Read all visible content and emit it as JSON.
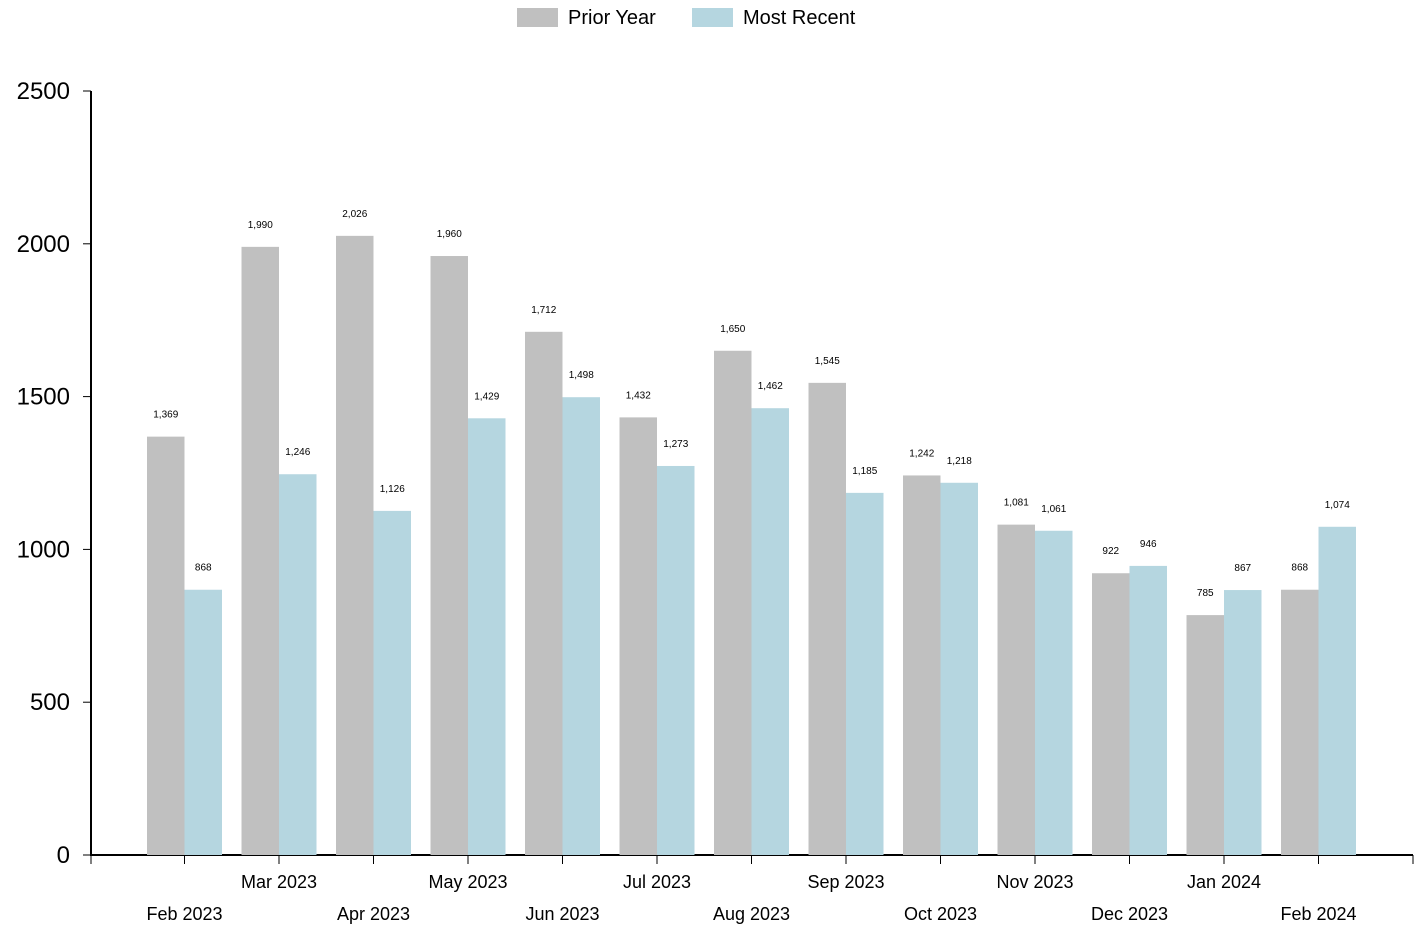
{
  "chart_data": {
    "type": "bar",
    "title": "",
    "xlabel": "",
    "ylabel": "",
    "ylim": [
      0,
      2500
    ],
    "yticks": [
      0,
      500,
      1000,
      1500,
      2000,
      2500
    ],
    "ytick_labels": [
      "0",
      "500",
      "1000",
      "1500",
      "2000",
      "2500"
    ],
    "grid": false,
    "legend_position": "top-center",
    "categories": [
      "Feb 2023",
      "Mar 2023",
      "Apr 2023",
      "May 2023",
      "Jun 2023",
      "Jul 2023",
      "Aug 2023",
      "Sep 2023",
      "Oct 2023",
      "Nov 2023",
      "Dec 2023",
      "Jan 2024",
      "Feb 2024"
    ],
    "series": [
      {
        "name": "Prior Year",
        "color": "#c0c0c0",
        "values": [
          1369,
          1990,
          2026,
          1960,
          1712,
          1432,
          1650,
          1545,
          1242,
          1081,
          922,
          785,
          868
        ],
        "labels": [
          "1,369",
          "1,990",
          "2,026",
          "1,960",
          "1,712",
          "1,432",
          "1,650",
          "1,545",
          "1,242",
          "1,081",
          "922",
          "785",
          "868"
        ]
      },
      {
        "name": "Most Recent",
        "color": "#b5d6e0",
        "values": [
          868,
          1246,
          1126,
          1429,
          1498,
          1273,
          1462,
          1185,
          1218,
          1061,
          946,
          867,
          1074
        ],
        "labels": [
          "868",
          "1,246",
          "1,126",
          "1,429",
          "1,498",
          "1,273",
          "1,462",
          "1,185",
          "1,218",
          "1,061",
          "946",
          "867",
          "1,074"
        ]
      }
    ]
  }
}
